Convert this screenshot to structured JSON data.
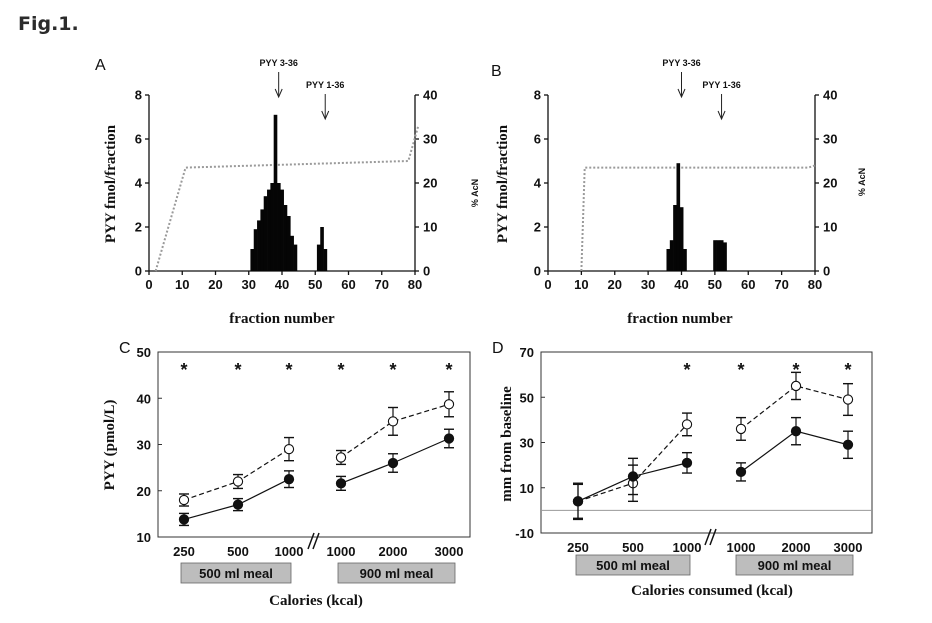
{
  "figure_title": "Fig.1.",
  "chart_data": [
    {
      "panel": "A",
      "type": "bar",
      "arrows": [
        {
          "label": "PYY 3-36",
          "x": 39
        },
        {
          "label": "PYY 1-36",
          "x": 53
        }
      ],
      "xlabel": "fraction number",
      "ylabel": "PYY fmol/fraction",
      "y2label": "% AcN",
      "xlim": [
        0,
        80
      ],
      "ylim": [
        0,
        8
      ],
      "y2lim": [
        0,
        40
      ],
      "xticks": [
        "0",
        "10",
        "20",
        "30",
        "40",
        "50",
        "60",
        "70",
        "80"
      ],
      "yticks": [
        "0",
        "2",
        "4",
        "6",
        "8"
      ],
      "y2ticks": [
        "0",
        "10",
        "20",
        "30",
        "40"
      ],
      "x": [
        31,
        32,
        33,
        34,
        35,
        36,
        37,
        38,
        39,
        40,
        41,
        42,
        43,
        44,
        51,
        52,
        53
      ],
      "values": [
        1.0,
        1.9,
        2.3,
        2.8,
        3.4,
        3.7,
        4.0,
        7.1,
        4.0,
        3.7,
        3.0,
        2.5,
        1.6,
        1.2,
        1.2,
        2.0,
        1.0
      ],
      "gradient": {
        "x": [
          2,
          11,
          78,
          81
        ],
        "y": [
          0,
          23.5,
          25,
          33
        ]
      }
    },
    {
      "panel": "B",
      "type": "bar",
      "arrows": [
        {
          "label": "PYY 3-36",
          "x": 40
        },
        {
          "label": "PYY 1-36",
          "x": 52
        }
      ],
      "xlabel": "fraction number",
      "ylabel": "PYY fmol/fraction",
      "y2label": "% AcN",
      "xlim": [
        0,
        80
      ],
      "ylim": [
        0,
        8
      ],
      "y2lim": [
        0,
        40
      ],
      "xticks": [
        "0",
        "10",
        "20",
        "30",
        "40",
        "50",
        "60",
        "70",
        "80"
      ],
      "yticks": [
        "0",
        "2",
        "4",
        "6",
        "8"
      ],
      "y2ticks": [
        "0",
        "10",
        "20",
        "30",
        "40"
      ],
      "x": [
        36,
        37,
        38,
        39,
        40,
        41,
        50,
        51,
        52,
        53
      ],
      "values": [
        1.0,
        1.4,
        3.0,
        4.9,
        2.9,
        1.0,
        1.4,
        1.4,
        1.4,
        1.3
      ],
      "gradient": {
        "x": [
          10,
          11,
          78,
          80
        ],
        "y": [
          0,
          23.5,
          23.5,
          24
        ]
      }
    },
    {
      "panel": "C",
      "type": "line",
      "categories": [
        "250",
        "500",
        "1000",
        "1000",
        "2000",
        "3000"
      ],
      "groups": [
        {
          "label": "500 ml meal"
        },
        {
          "label": "900 ml meal"
        }
      ],
      "xlabel": "Calories (kcal)",
      "ylabel": "PYY (pmol/L)",
      "ylim": [
        10,
        50
      ],
      "yticks": [
        "10",
        "20",
        "30",
        "40",
        "50"
      ],
      "significance": [
        "*",
        "*",
        "*",
        "*",
        "*",
        "*"
      ],
      "series": [
        {
          "marker": "open",
          "style": "dashed",
          "values": [
            18,
            22,
            29,
            27.2,
            35,
            38.7
          ],
          "errors": [
            1.3,
            1.5,
            2.5,
            1.5,
            3,
            2.7
          ]
        },
        {
          "marker": "filled",
          "style": "solid",
          "values": [
            13.8,
            17,
            22.5,
            21.6,
            26,
            31.3
          ],
          "errors": [
            1.3,
            1.3,
            1.8,
            1.5,
            2,
            2
          ]
        }
      ]
    },
    {
      "panel": "D",
      "type": "line",
      "categories": [
        "250",
        "500",
        "1000",
        "1000",
        "2000",
        "3000"
      ],
      "groups": [
        {
          "label": "500 ml meal"
        },
        {
          "label": "900 ml meal"
        }
      ],
      "xlabel": "Calories consumed (kcal)",
      "ylabel": "mm  from baseline",
      "ylim": [
        -10,
        70
      ],
      "yticks": [
        "-10",
        "10",
        "30",
        "50",
        "70"
      ],
      "baseline": 0,
      "significance": [
        "",
        "",
        "*",
        "*",
        "*",
        "*"
      ],
      "series": [
        {
          "marker": "open",
          "style": "dashed",
          "values": [
            4,
            12,
            38,
            36,
            55,
            49
          ],
          "errors": [
            7.5,
            8,
            5,
            5,
            6,
            7
          ]
        },
        {
          "marker": "filled",
          "style": "solid",
          "values": [
            4,
            15,
            21,
            17,
            35,
            29
          ],
          "errors": [
            8,
            8,
            4.5,
            4,
            6,
            6
          ]
        }
      ]
    }
  ]
}
